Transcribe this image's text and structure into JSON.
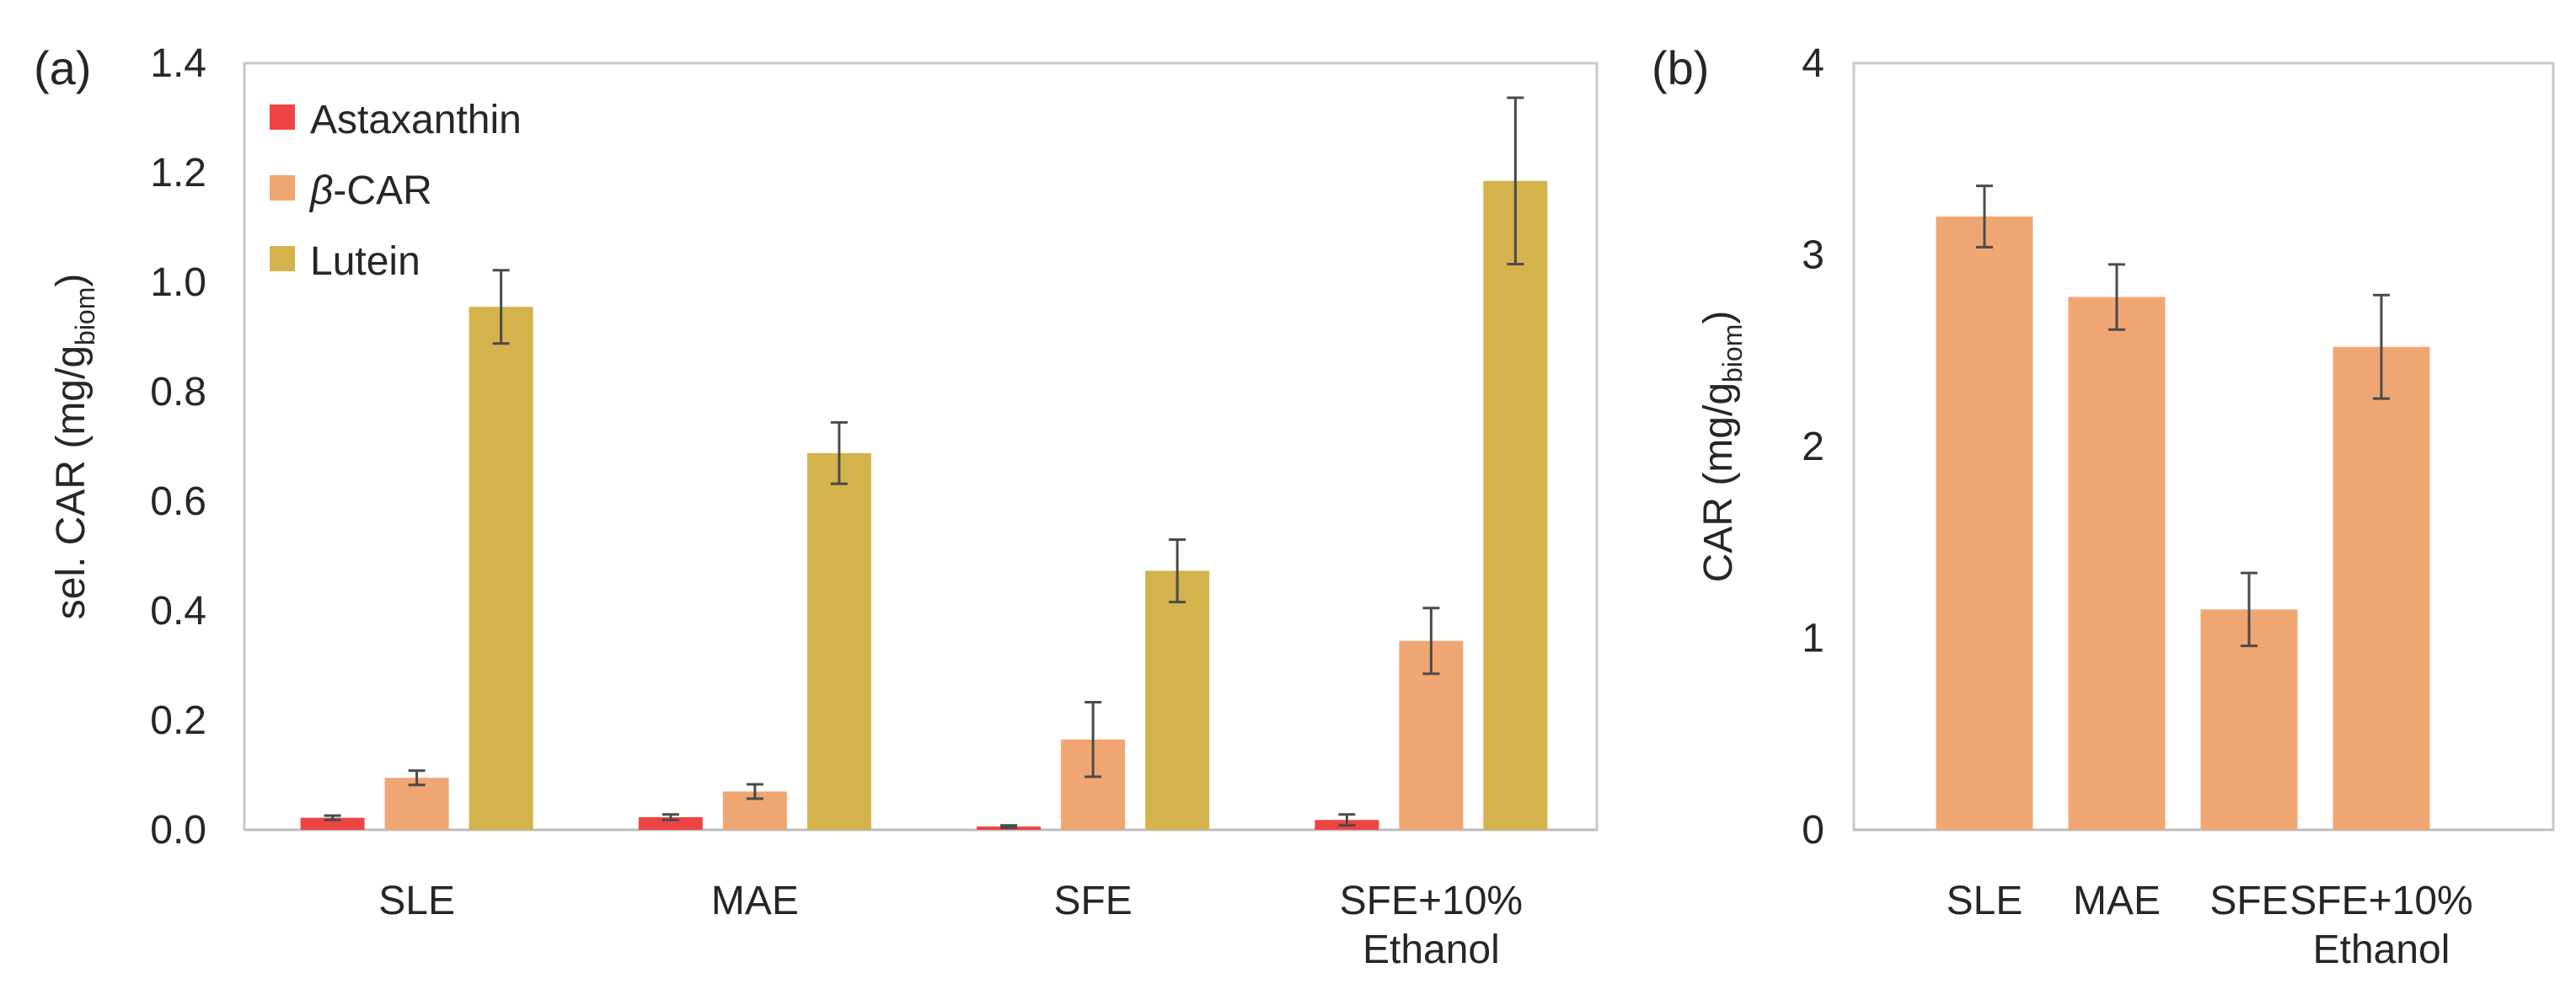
{
  "chart_data": [
    {
      "panel_label": "(a)",
      "type": "bar",
      "ylabel_main": "sel. CAR (mg/g",
      "ylabel_sub": "biom",
      "ylabel_close": ")",
      "ylim": [
        0,
        1.4
      ],
      "yticks": [
        "0.0",
        "0.2",
        "0.4",
        "0.6",
        "0.8",
        "1.0",
        "1.2",
        "1.4"
      ],
      "ytick_values": [
        0,
        0.2,
        0.4,
        0.6,
        0.8,
        1.0,
        1.2,
        1.4
      ],
      "categories": [
        [
          "SLE"
        ],
        [
          "MAE"
        ],
        [
          "SFE"
        ],
        [
          "SFE+10%",
          "Ethanol"
        ]
      ],
      "legend_position": "top-left",
      "series": [
        {
          "name": "Astaxanthin",
          "name_prefix": "",
          "name_suffix": "Astaxanthin",
          "color": "#ee4444",
          "values": [
            0.022,
            0.023,
            0.006,
            0.018
          ],
          "errors": [
            0.004,
            0.005,
            0.002,
            0.01
          ]
        },
        {
          "name": "β-CAR",
          "name_prefix": "β",
          "name_suffix": "-CAR",
          "color": "#f0a673",
          "values": [
            0.095,
            0.07,
            0.165,
            0.345
          ],
          "errors": [
            0.013,
            0.013,
            0.068,
            0.06
          ]
        },
        {
          "name": "Lutein",
          "name_prefix": "",
          "name_suffix": "Lutein",
          "color": "#d4b24c",
          "values": [
            0.955,
            0.688,
            0.473,
            1.185
          ],
          "errors": [
            0.067,
            0.056,
            0.057,
            0.152
          ]
        }
      ]
    },
    {
      "panel_label": "(b)",
      "type": "bar",
      "ylabel_main": "CAR (mg/g",
      "ylabel_sub": "biom",
      "ylabel_close": ")",
      "ylim": [
        0,
        4
      ],
      "yticks": [
        "0",
        "1",
        "2",
        "3",
        "4"
      ],
      "ytick_values": [
        0,
        1,
        2,
        3,
        4
      ],
      "categories": [
        [
          "SLE"
        ],
        [
          "MAE"
        ],
        [
          "SFE"
        ],
        [
          "SFE+10%",
          "Ethanol"
        ]
      ],
      "color": "#f0a673",
      "values": [
        3.2,
        2.78,
        1.15,
        2.52
      ],
      "errors": [
        0.16,
        0.17,
        0.19,
        0.27
      ]
    }
  ]
}
